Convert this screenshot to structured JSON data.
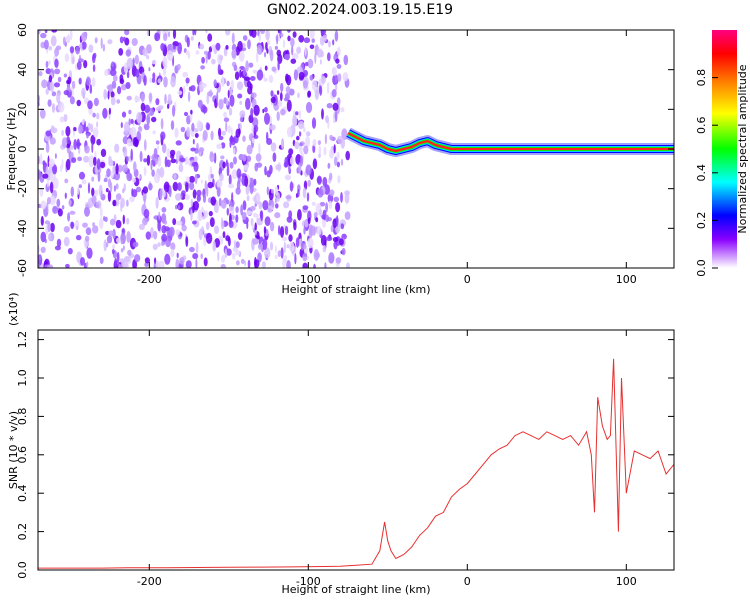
{
  "title": "GN02.2024.003.19.15.E19",
  "chart_data": [
    {
      "type": "heatmap",
      "xlabel": "Height of straight line (km)",
      "ylabel": "Frequency (Hz)",
      "xlim": [
        -270,
        130
      ],
      "ylim": [
        -60,
        60
      ],
      "xticks": [
        -200,
        -100,
        0,
        100
      ],
      "yticks": [
        -60,
        -40,
        -20,
        0,
        20,
        40,
        60
      ],
      "noise_region_x": [
        -270,
        -75
      ],
      "signal_track": {
        "x": [
          -75,
          -70,
          -65,
          -60,
          -55,
          -50,
          -45,
          -40,
          -35,
          -30,
          -25,
          -20,
          -15,
          -10,
          0,
          10,
          20,
          30,
          40,
          50,
          60,
          70,
          80,
          90,
          100,
          110,
          120,
          130
        ],
        "y": [
          8,
          6,
          4,
          3,
          2,
          0,
          -1,
          0,
          1,
          3,
          4,
          2,
          1,
          0,
          0,
          0,
          0,
          0,
          0,
          0,
          0,
          0,
          0,
          0,
          0,
          0,
          0,
          0
        ]
      },
      "colorbar": {
        "label": "Normalized spectral amplitude",
        "range": [
          0,
          1
        ],
        "ticks": [
          0.0,
          0.2,
          0.4,
          0.6,
          0.8
        ],
        "colors": [
          "#ffffff",
          "#8a00ff",
          "#0000ff",
          "#00ffff",
          "#00ff00",
          "#ffff00",
          "#ff8000",
          "#ff0000",
          "#ff0080"
        ]
      }
    },
    {
      "type": "line",
      "xlabel": "Height of straight line (km)",
      "ylabel": "SNR (10 * v/v)",
      "yscale_note": "(x10⁴)",
      "xlim": [
        -270,
        130
      ],
      "ylim": [
        0,
        1.25
      ],
      "xticks": [
        -200,
        -100,
        0,
        100
      ],
      "yticks": [
        0.0,
        0.2,
        0.4,
        0.6,
        0.8,
        1.0,
        1.2
      ],
      "series": [
        {
          "color": "#e83030",
          "x": [
            -270,
            -250,
            -230,
            -210,
            -190,
            -170,
            -150,
            -130,
            -110,
            -90,
            -80,
            -70,
            -60,
            -55,
            -52,
            -50,
            -48,
            -45,
            -40,
            -35,
            -30,
            -25,
            -20,
            -15,
            -10,
            -5,
            0,
            5,
            10,
            15,
            20,
            25,
            30,
            35,
            40,
            45,
            50,
            55,
            60,
            65,
            70,
            75,
            78,
            80,
            82,
            85,
            88,
            90,
            92,
            95,
            97,
            100,
            105,
            110,
            115,
            120,
            125,
            130
          ],
          "y": [
            0.01,
            0.01,
            0.01,
            0.012,
            0.012,
            0.013,
            0.014,
            0.015,
            0.016,
            0.018,
            0.02,
            0.025,
            0.03,
            0.1,
            0.25,
            0.15,
            0.1,
            0.06,
            0.08,
            0.12,
            0.18,
            0.22,
            0.28,
            0.3,
            0.38,
            0.42,
            0.45,
            0.5,
            0.55,
            0.6,
            0.63,
            0.65,
            0.7,
            0.72,
            0.7,
            0.68,
            0.72,
            0.7,
            0.68,
            0.7,
            0.65,
            0.72,
            0.6,
            0.3,
            0.9,
            0.75,
            0.68,
            0.7,
            1.1,
            0.2,
            1.0,
            0.4,
            0.62,
            0.6,
            0.58,
            0.62,
            0.5,
            0.55
          ]
        }
      ]
    }
  ]
}
